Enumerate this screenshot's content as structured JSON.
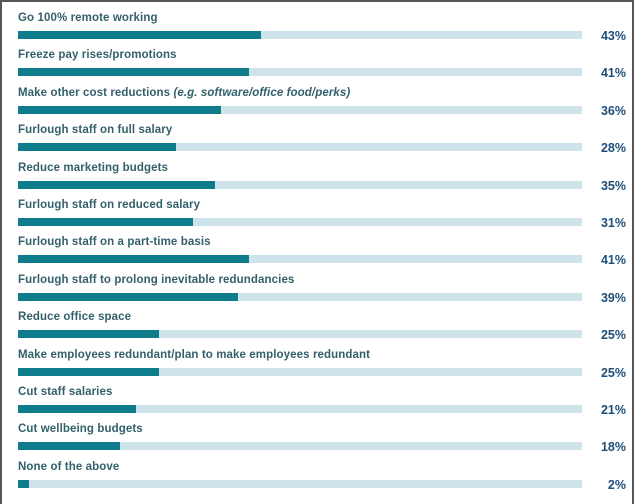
{
  "chart_data": {
    "type": "bar",
    "orientation": "horizontal",
    "title": "",
    "xlabel": "",
    "ylabel": "",
    "xlim": [
      0,
      100
    ],
    "value_suffix": "%",
    "grid": false,
    "legend": false,
    "categories": [
      "Go 100% remote working",
      "Freeze pay rises/promotions",
      "Make other cost reductions (e.g. software/office food/perks)",
      "Furlough staff on full salary",
      "Reduce marketing budgets",
      "Furlough staff on reduced salary",
      "Furlough staff on a part-time basis",
      "Furlough staff to prolong inevitable redundancies",
      "Reduce office space",
      "Make employees redundant/plan to make employees redundant",
      "Cut staff salaries",
      "Cut wellbeing budgets",
      "None of the above"
    ],
    "values": [
      43,
      41,
      36,
      28,
      35,
      31,
      41,
      39,
      25,
      25,
      21,
      18,
      2
    ],
    "colors": {
      "bar_fill": "#0f7c8c",
      "bar_track": "#cfe4ea",
      "label_text": "#33606b",
      "value_text": "#1f4e79"
    }
  },
  "rows": [
    {
      "label": "Go 100% remote working",
      "label_italic": "",
      "value": 43,
      "value_label": "43%"
    },
    {
      "label": "Freeze pay rises/promotions",
      "label_italic": "",
      "value": 41,
      "value_label": "41%"
    },
    {
      "label": "Make other cost reductions ",
      "label_italic": "(e.g. software/office food/perks)",
      "value": 36,
      "value_label": "36%"
    },
    {
      "label": "Furlough staff on full salary",
      "label_italic": "",
      "value": 28,
      "value_label": "28%"
    },
    {
      "label": "Reduce marketing budgets",
      "label_italic": "",
      "value": 35,
      "value_label": "35%"
    },
    {
      "label": "Furlough staff on reduced salary",
      "label_italic": "",
      "value": 31,
      "value_label": "31%"
    },
    {
      "label": "Furlough staff on a part-time basis",
      "label_italic": "",
      "value": 41,
      "value_label": "41%"
    },
    {
      "label": "Furlough staff to prolong inevitable redundancies",
      "label_italic": "",
      "value": 39,
      "value_label": "39%"
    },
    {
      "label": "Reduce office space",
      "label_italic": "",
      "value": 25,
      "value_label": "25%"
    },
    {
      "label": "Make employees redundant/plan to make employees redundant",
      "label_italic": "",
      "value": 25,
      "value_label": "25%"
    },
    {
      "label": "Cut staff salaries",
      "label_italic": "",
      "value": 21,
      "value_label": "21%"
    },
    {
      "label": "Cut wellbeing budgets",
      "label_italic": "",
      "value": 18,
      "value_label": "18%"
    },
    {
      "label": "None of the above",
      "label_italic": "",
      "value": 2,
      "value_label": "2%"
    }
  ]
}
